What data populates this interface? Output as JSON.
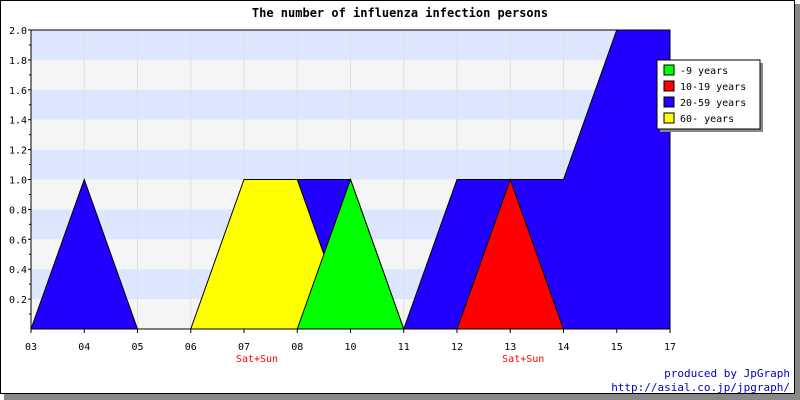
{
  "chart_data": {
    "type": "area",
    "title": "The number of influenza infection persons",
    "categories": [
      "03",
      "04",
      "05",
      "06",
      "07",
      "08",
      "10",
      "11",
      "12",
      "13",
      "14",
      "15",
      "17"
    ],
    "weekend_label": "Sat+Sun",
    "weekend_categories": [
      "07",
      "13"
    ],
    "ylim": [
      0,
      2.0
    ],
    "yticks": [
      "0.2",
      "0.4",
      "0.6",
      "0.8",
      "1.0",
      "1.2",
      "1.4",
      "1.6",
      "1.8",
      "2.0"
    ],
    "grid": "horizontal bands",
    "legend_position": "top-right",
    "series": [
      {
        "name": "-9 years",
        "color": "#00ff00",
        "values": [
          0,
          0,
          0,
          0,
          0,
          0,
          1,
          0,
          0,
          0,
          0,
          0,
          0
        ]
      },
      {
        "name": "10-19 years",
        "color": "#ff0000",
        "values": [
          0,
          0,
          0,
          0,
          0,
          0,
          0,
          0,
          0,
          1,
          0,
          0,
          0
        ]
      },
      {
        "name": "20-59 years",
        "color": "#2200ff",
        "values": [
          0,
          1,
          0,
          0,
          0,
          1,
          1,
          0,
          1,
          1,
          1,
          2,
          2
        ]
      },
      {
        "name": "60- years",
        "color": "#ffff00",
        "values": [
          0,
          0,
          0,
          0,
          1,
          1,
          0,
          0,
          0,
          0,
          0,
          0,
          0
        ]
      }
    ]
  },
  "credit": {
    "line1": "produced by JpGraph",
    "line2": "http://asial.co.jp/jpgraph/"
  },
  "colors": {
    "band_blue": "#dde6ff",
    "band_gray": "#f5f5f5",
    "weekend_text": "#ff0000",
    "credit_text": "#0000cc"
  }
}
